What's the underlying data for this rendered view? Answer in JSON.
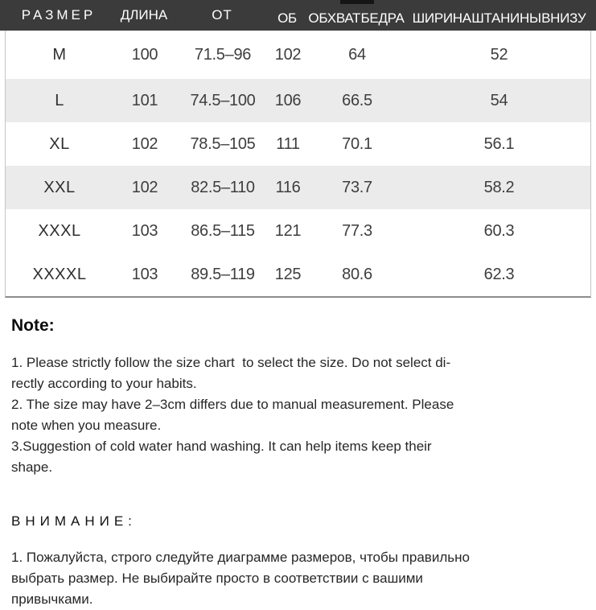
{
  "colors": {
    "header_bg": "#3b3b3b",
    "header_text": "#ffffff",
    "alt_row_bg": "#ebebeb"
  },
  "table": {
    "columns": [
      "РАЗМЕР",
      "ДЛИНА",
      "ОТ",
      "ОБ",
      "ОБХВАТ БЕДРА",
      "ШИРИНА ШТАНИНЫ ВНИЗУ"
    ],
    "rows": [
      {
        "size": "M",
        "length": "100",
        "ot": "71.5–96",
        "ob": "102",
        "hip": "64",
        "leg": "52"
      },
      {
        "size": "L",
        "length": "101",
        "ot": "74.5–100",
        "ob": "106",
        "hip": "66.5",
        "leg": "54"
      },
      {
        "size": "XL",
        "length": "102",
        "ot": "78.5–105",
        "ob": "111",
        "hip": "70.1",
        "leg": "56.1"
      },
      {
        "size": "XXL",
        "length": "102",
        "ot": "82.5–110",
        "ob": "116",
        "hip": "73.7",
        "leg": "58.2"
      },
      {
        "size": "XXXL",
        "length": "103",
        "ot": "86.5–115",
        "ob": "121",
        "hip": "77.3",
        "leg": "60.3"
      },
      {
        "size": "XXXXL",
        "length": "103",
        "ot": "89.5–119",
        "ob": "125",
        "hip": "80.6",
        "leg": "62.3"
      }
    ]
  },
  "note": {
    "heading": "Note:",
    "lines": [
      "1. Please strictly follow the size chart  to select the size. Do not select di-",
      "rectly according to your habits.",
      "2. The size may have 2–3cm differs due to manual measurement. Please",
      "note when you measure.",
      "3.Suggestion of cold water hand washing. It can help items keep their",
      "shape."
    ]
  },
  "attention": {
    "heading": "ВНИМАНИЕ:",
    "lines": [
      "1. Пожалуйста, строго следуйте диаграмме размеров, чтобы правильно",
      "выбрать размер. Не выбирайте просто в соответствии с вашими",
      "привычками."
    ]
  }
}
